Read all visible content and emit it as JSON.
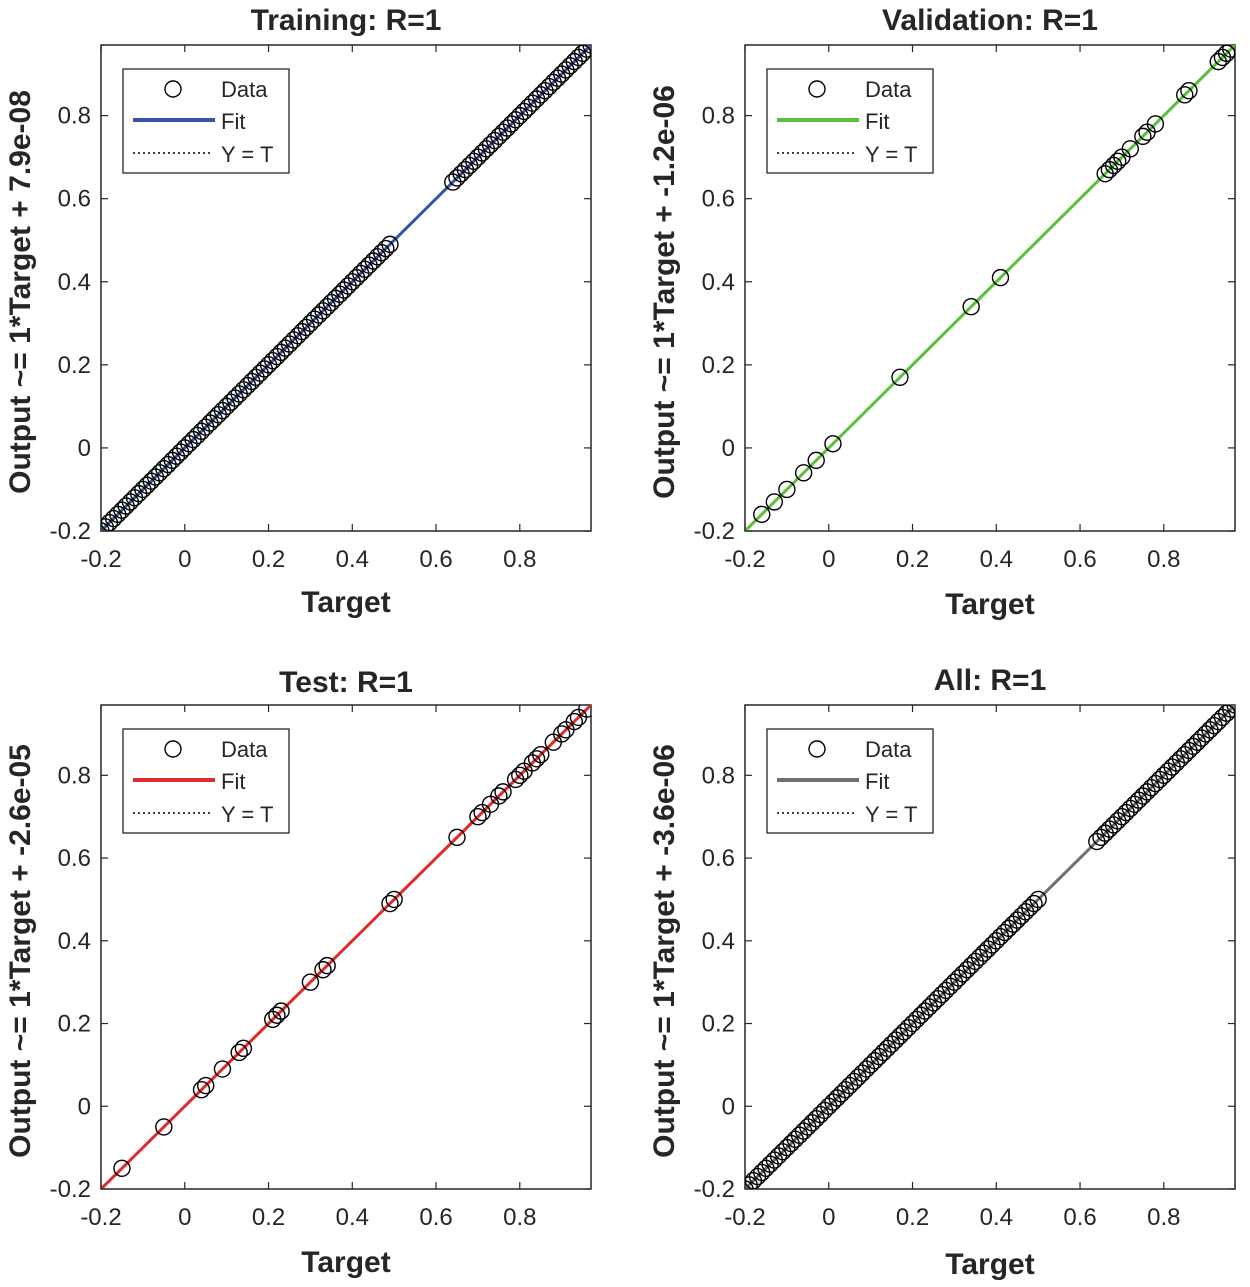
{
  "chart_data": [
    {
      "type": "scatter",
      "title": "Training: R=1",
      "xlabel": "Target",
      "ylabel": "Output ~= 1*Target + 7.9e-08",
      "xlim": [
        -0.2,
        0.97
      ],
      "ylim": [
        -0.2,
        0.97
      ],
      "xticks": [
        "-0.2",
        "0",
        "0.2",
        "0.4",
        "0.6",
        "0.8"
      ],
      "yticks": [
        "-0.2",
        "0",
        "0.2",
        "0.4",
        "0.6",
        "0.8"
      ],
      "fit_color": "#3a54a4",
      "legend": {
        "position": "top-left",
        "entries": [
          "Data",
          "Fit",
          "Y = T"
        ]
      },
      "points": [
        -0.2,
        -0.19,
        -0.18,
        -0.17,
        -0.16,
        -0.15,
        -0.14,
        -0.13,
        -0.12,
        -0.11,
        -0.1,
        -0.09,
        -0.08,
        -0.07,
        -0.06,
        -0.05,
        -0.04,
        -0.03,
        -0.02,
        -0.01,
        0.0,
        0.01,
        0.02,
        0.03,
        0.04,
        0.05,
        0.06,
        0.07,
        0.08,
        0.09,
        0.1,
        0.11,
        0.12,
        0.13,
        0.14,
        0.15,
        0.16,
        0.17,
        0.18,
        0.19,
        0.2,
        0.21,
        0.22,
        0.23,
        0.24,
        0.25,
        0.26,
        0.27,
        0.28,
        0.29,
        0.3,
        0.31,
        0.32,
        0.33,
        0.34,
        0.35,
        0.36,
        0.37,
        0.38,
        0.39,
        0.4,
        0.41,
        0.42,
        0.43,
        0.44,
        0.45,
        0.46,
        0.47,
        0.48,
        0.49,
        0.64,
        0.65,
        0.66,
        0.67,
        0.68,
        0.69,
        0.7,
        0.71,
        0.72,
        0.73,
        0.74,
        0.75,
        0.76,
        0.77,
        0.78,
        0.79,
        0.8,
        0.81,
        0.82,
        0.83,
        0.84,
        0.85,
        0.86,
        0.87,
        0.88,
        0.89,
        0.9,
        0.91,
        0.92,
        0.93,
        0.94,
        0.95,
        0.96,
        0.97
      ]
    },
    {
      "type": "scatter",
      "title": "Validation: R=1",
      "xlabel": "Target",
      "ylabel": "Output ~= 1*Target + -1.2e-06",
      "xlim": [
        -0.2,
        0.97
      ],
      "ylim": [
        -0.2,
        0.97
      ],
      "xticks": [
        "-0.2",
        "0",
        "0.2",
        "0.4",
        "0.6",
        "0.8"
      ],
      "yticks": [
        "-0.2",
        "0",
        "0.2",
        "0.4",
        "0.6",
        "0.8"
      ],
      "fit_color": "#5cbf3c",
      "legend": {
        "position": "top-left",
        "entries": [
          "Data",
          "Fit",
          "Y = T"
        ]
      },
      "points": [
        -0.16,
        -0.13,
        -0.1,
        -0.06,
        -0.03,
        0.01,
        0.17,
        0.34,
        0.41,
        0.66,
        0.67,
        0.68,
        0.69,
        0.7,
        0.72,
        0.75,
        0.76,
        0.78,
        0.85,
        0.86,
        0.93,
        0.94,
        0.95,
        0.96
      ]
    },
    {
      "type": "scatter",
      "title": "Test: R=1",
      "xlabel": "Target",
      "ylabel": "Output ~= 1*Target + -2.6e-05",
      "xlim": [
        -0.2,
        0.97
      ],
      "ylim": [
        -0.2,
        0.97
      ],
      "xticks": [
        "-0.2",
        "0",
        "0.2",
        "0.4",
        "0.6",
        "0.8"
      ],
      "yticks": [
        "-0.2",
        "0",
        "0.2",
        "0.4",
        "0.6",
        "0.8"
      ],
      "fit_color": "#e02b2b",
      "legend": {
        "position": "top-left",
        "entries": [
          "Data",
          "Fit",
          "Y = T"
        ]
      },
      "points": [
        -0.15,
        -0.05,
        0.04,
        0.05,
        0.09,
        0.13,
        0.14,
        0.21,
        0.22,
        0.23,
        0.3,
        0.33,
        0.34,
        0.49,
        0.5,
        0.65,
        0.7,
        0.71,
        0.73,
        0.75,
        0.76,
        0.79,
        0.8,
        0.81,
        0.83,
        0.84,
        0.85,
        0.88,
        0.9,
        0.91,
        0.93,
        0.94,
        0.96
      ]
    },
    {
      "type": "scatter",
      "title": "All: R=1",
      "xlabel": "Target",
      "ylabel": "Output ~= 1*Target + -3.6e-06",
      "xlim": [
        -0.2,
        0.97
      ],
      "ylim": [
        -0.2,
        0.97
      ],
      "xticks": [
        "-0.2",
        "0",
        "0.2",
        "0.4",
        "0.6",
        "0.8"
      ],
      "yticks": [
        "-0.2",
        "0",
        "0.2",
        "0.4",
        "0.6",
        "0.8"
      ],
      "fit_color": "#707070",
      "legend": {
        "position": "top-left",
        "entries": [
          "Data",
          "Fit",
          "Y = T"
        ]
      },
      "points": [
        -0.2,
        -0.19,
        -0.18,
        -0.17,
        -0.16,
        -0.15,
        -0.14,
        -0.13,
        -0.12,
        -0.11,
        -0.1,
        -0.09,
        -0.08,
        -0.07,
        -0.06,
        -0.05,
        -0.04,
        -0.03,
        -0.02,
        -0.01,
        0.0,
        0.01,
        0.02,
        0.03,
        0.04,
        0.05,
        0.06,
        0.07,
        0.08,
        0.09,
        0.1,
        0.11,
        0.12,
        0.13,
        0.14,
        0.15,
        0.16,
        0.17,
        0.18,
        0.19,
        0.2,
        0.21,
        0.22,
        0.23,
        0.24,
        0.25,
        0.26,
        0.27,
        0.28,
        0.29,
        0.3,
        0.31,
        0.32,
        0.33,
        0.34,
        0.35,
        0.36,
        0.37,
        0.38,
        0.39,
        0.4,
        0.41,
        0.42,
        0.43,
        0.44,
        0.45,
        0.46,
        0.47,
        0.48,
        0.49,
        0.5,
        0.64,
        0.65,
        0.66,
        0.67,
        0.68,
        0.69,
        0.7,
        0.71,
        0.72,
        0.73,
        0.74,
        0.75,
        0.76,
        0.77,
        0.78,
        0.79,
        0.8,
        0.81,
        0.82,
        0.83,
        0.84,
        0.85,
        0.86,
        0.87,
        0.88,
        0.89,
        0.9,
        0.91,
        0.92,
        0.93,
        0.94,
        0.95,
        0.96,
        0.97
      ]
    }
  ]
}
